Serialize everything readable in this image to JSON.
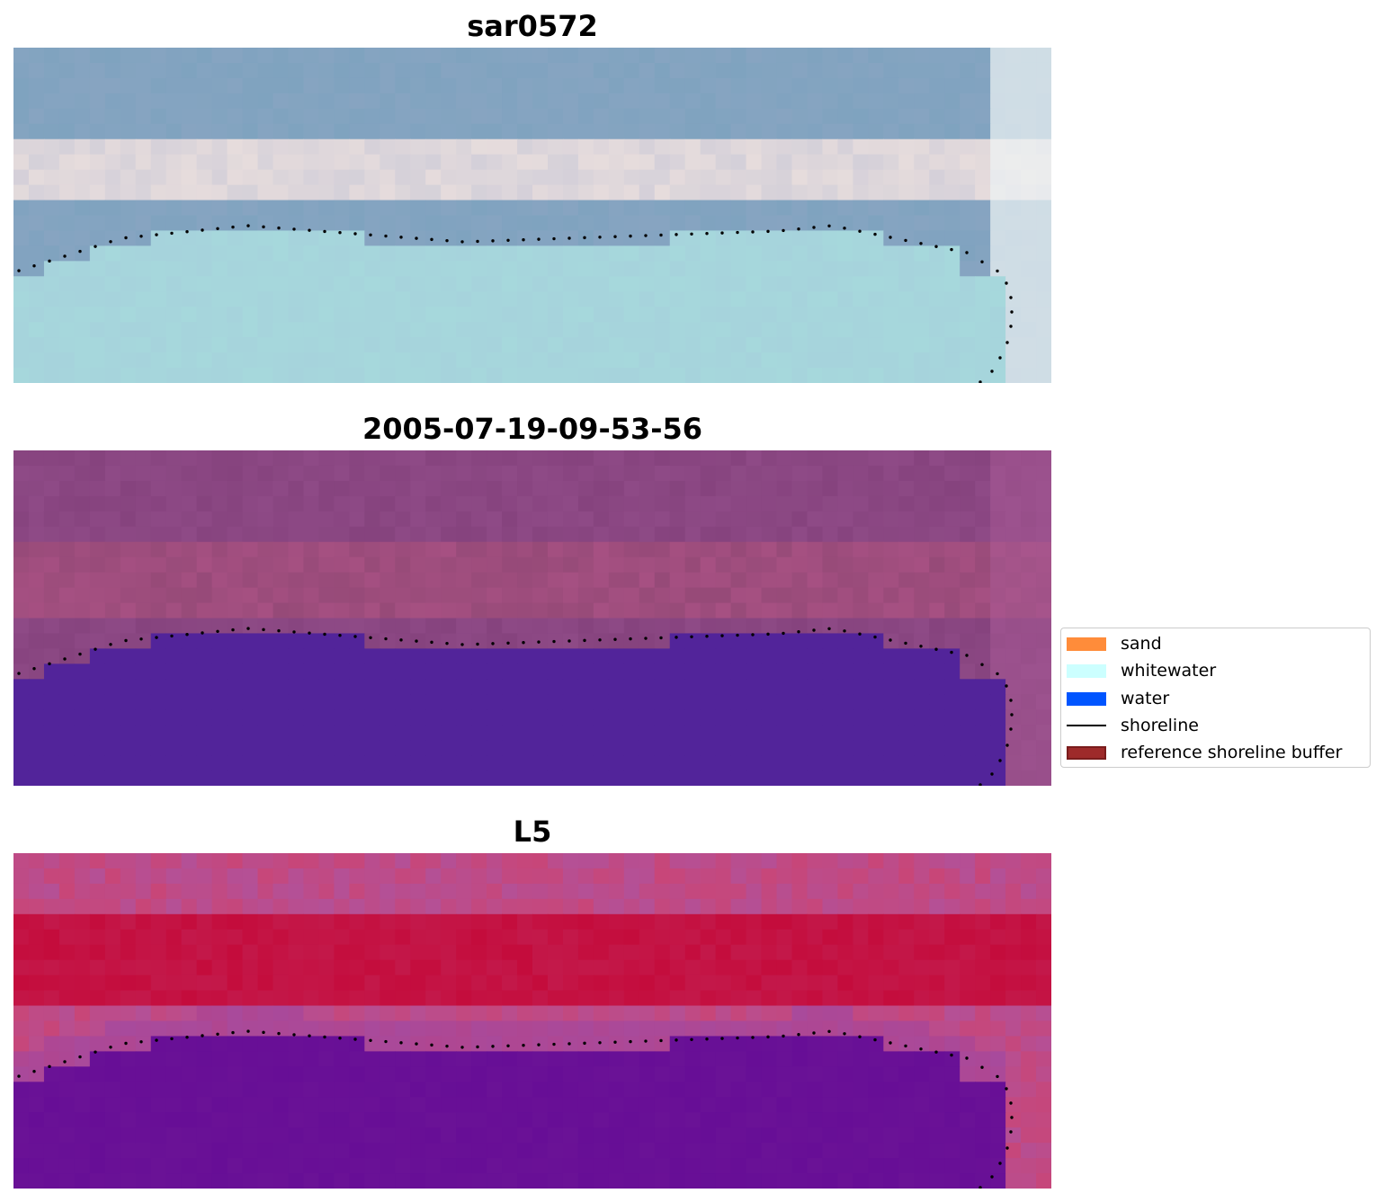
{
  "panels": [
    {
      "title": "sar0572",
      "style": "rgb"
    },
    {
      "title": "2005-07-19-09-53-56",
      "style": "classified"
    },
    {
      "title": "L5",
      "style": "index"
    }
  ],
  "legend": {
    "items": [
      {
        "label": "sand",
        "color": "#ff8c3a",
        "kind": "patch"
      },
      {
        "label": "whitewater",
        "color": "#ccffff",
        "kind": "patch"
      },
      {
        "label": "water",
        "color": "#0055ff",
        "kind": "patch"
      },
      {
        "label": "shoreline",
        "color": "#000000",
        "kind": "line"
      },
      {
        "label": "reference shoreline buffer",
        "color": "#9e2a2a",
        "kind": "patch"
      }
    ]
  },
  "colors": {
    "rgb_water": "#a6d8dc",
    "rgb_land": "#7fa3bf",
    "rgb_sand": "#e6dcdc",
    "classified_land": "#8e4a86",
    "classified_water_mask": "#52249a",
    "index_land": "#c40c3c",
    "index_water": "#6a1296",
    "shoreline_dots": "#000000"
  }
}
